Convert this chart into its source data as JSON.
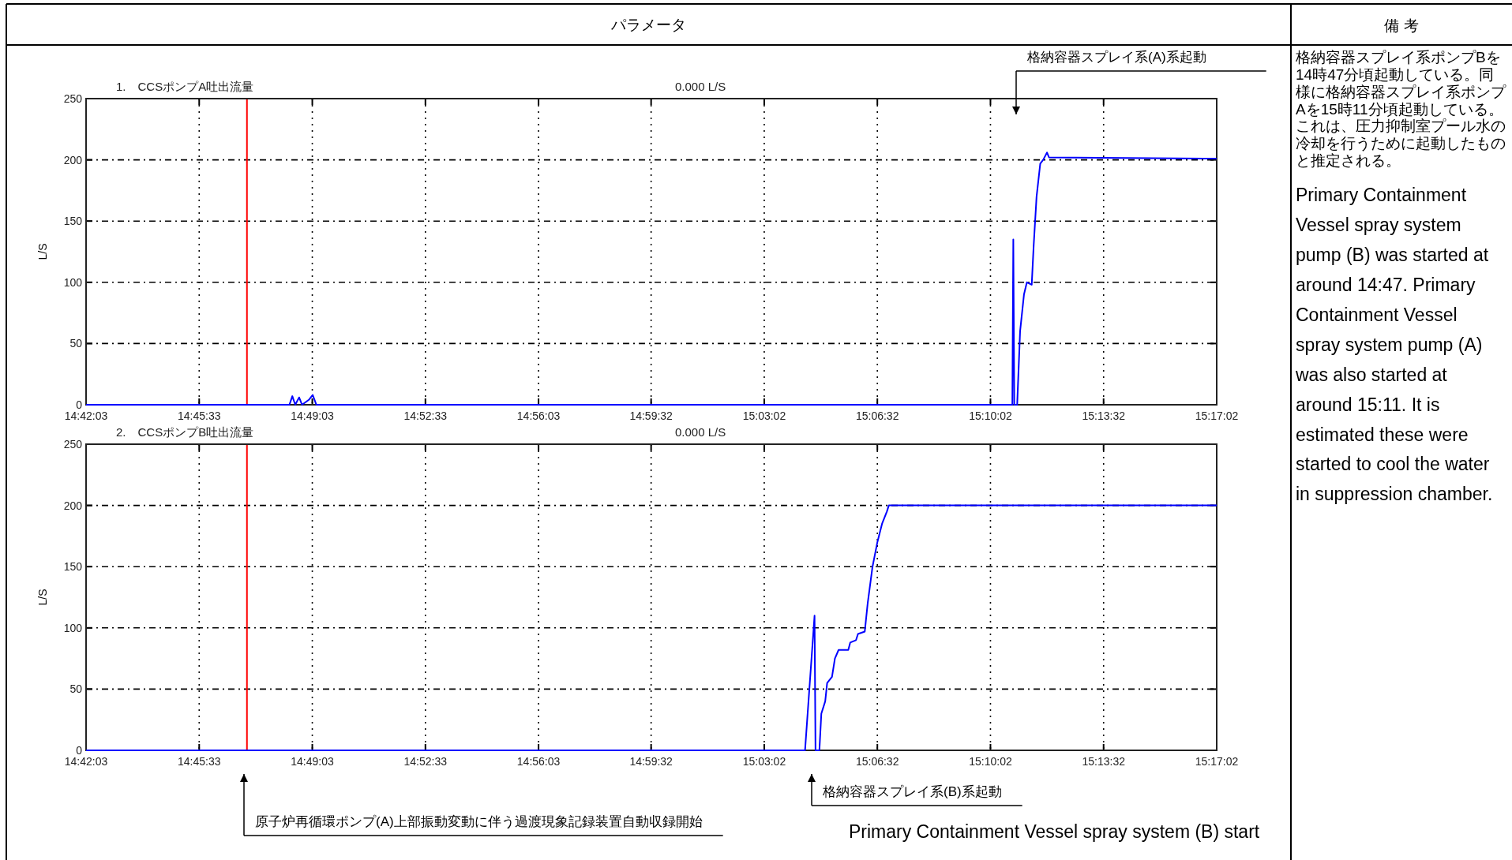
{
  "chart_data": [
    {
      "type": "line",
      "title": "1.　CCSポンプA吐出流量",
      "ylabel": "L/S",
      "x": [
        14.70083,
        14.8057,
        14.8072,
        14.8087,
        14.8107,
        14.8122,
        14.8157,
        14.8177,
        14.8196,
        15.1785,
        15.179,
        15.1795,
        15.181,
        15.1825,
        15.1845,
        15.186,
        15.1885,
        15.1895,
        15.191,
        15.1929,
        15.1944,
        15.1964,
        15.1974,
        15.28389
      ],
      "series": [
        {
          "color": "#0000ff",
          "values": [
            0,
            0,
            7,
            0,
            6,
            0,
            4,
            8,
            0,
            0,
            135,
            0,
            0,
            60,
            90,
            100,
            98,
            130,
            170,
            197,
            200,
            206,
            202,
            201
          ]
        }
      ],
      "xlim": [
        14.70083,
        15.28389
      ],
      "ylim": [
        0,
        250
      ],
      "xticks": [
        {
          "value": 14.70083,
          "label": "14:42:03"
        },
        {
          "value": 14.75917,
          "label": "14:45:33"
        },
        {
          "value": 14.8175,
          "label": "14:49:03"
        },
        {
          "value": 14.87583,
          "label": "14:52:33"
        },
        {
          "value": 14.93417,
          "label": "14:56:03"
        },
        {
          "value": 14.99222,
          "label": "14:59:32"
        },
        {
          "value": 15.05056,
          "label": "15:03:02"
        },
        {
          "value": 15.10889,
          "label": "15:06:32"
        },
        {
          "value": 15.16722,
          "label": "15:10:02"
        },
        {
          "value": 15.22556,
          "label": "15:13:32"
        },
        {
          "value": 15.28389,
          "label": "15:17:02"
        }
      ],
      "yticks": [
        0,
        50,
        100,
        150,
        200,
        250
      ],
      "grid": true,
      "ref_lines": [
        {
          "axis": "x",
          "value": 14.7838,
          "color": "#ff0000"
        }
      ],
      "annotations": [
        "0.000 L/S",
        "格納容器スプレイ系(A)系起動"
      ]
    },
    {
      "type": "line",
      "title": "2.　CCSポンプB吐出流量",
      "ylabel": "L/S",
      "x": [
        14.70083,
        15.0716,
        15.0765,
        15.077,
        15.079,
        15.08,
        15.082,
        15.083,
        15.0855,
        15.087,
        15.0889,
        15.0939,
        15.0949,
        15.0979,
        15.0989,
        15.1024,
        15.1039,
        15.1064,
        15.1089,
        15.1113,
        15.1138,
        15.1148,
        15.28389
      ],
      "series": [
        {
          "color": "#0000ff",
          "values": [
            0,
            0,
            110,
            0,
            0,
            30,
            40,
            55,
            60,
            75,
            82,
            82,
            88,
            90,
            95,
            97,
            120,
            150,
            170,
            185,
            195,
            200,
            200
          ]
        }
      ],
      "xlim": [
        14.70083,
        15.28389
      ],
      "ylim": [
        0,
        250
      ],
      "xticks": [
        {
          "value": 14.70083,
          "label": "14:42:03"
        },
        {
          "value": 14.75917,
          "label": "14:45:33"
        },
        {
          "value": 14.8175,
          "label": "14:49:03"
        },
        {
          "value": 14.87583,
          "label": "14:52:33"
        },
        {
          "value": 14.93417,
          "label": "14:56:03"
        },
        {
          "value": 14.99222,
          "label": "14:59:32"
        },
        {
          "value": 15.05056,
          "label": "15:03:02"
        },
        {
          "value": 15.10889,
          "label": "15:06:32"
        },
        {
          "value": 15.16722,
          "label": "15:10:02"
        },
        {
          "value": 15.22556,
          "label": "15:13:32"
        },
        {
          "value": 15.28389,
          "label": "15:17:02"
        }
      ],
      "yticks": [
        0,
        50,
        100,
        150,
        200,
        250
      ],
      "grid": true,
      "ref_lines": [
        {
          "axis": "x",
          "value": 14.7838,
          "color": "#ff0000"
        }
      ],
      "annotations": [
        "0.000 L/S",
        "原子炉再循環ポンプ(A)上部振動変動に伴う過渡現象記録装置自動収録開始",
        "格納容器スプレイ系(B)系起動",
        "Primary Containment Vessel spray system (B) start"
      ]
    },
    {
      "type": "other",
      "title": "備 考",
      "annotations": [
        "パラメータ",
        "格納容器スプレイ系ポンプBを14時47分頃起動している。同様に格納容器スプレイ系ポンプAを15時11分頃起動している。これは、圧力抑制室プール水の冷却を行うために起動したものと推定される。",
        "Primary Containment Vessel spray system pump (B) was started at around 14:47. Primary Containment Vessel spray system pump (A) was also started at around 15:11. It is estimated these were started to cool the water in suppression chamber."
      ]
    }
  ]
}
